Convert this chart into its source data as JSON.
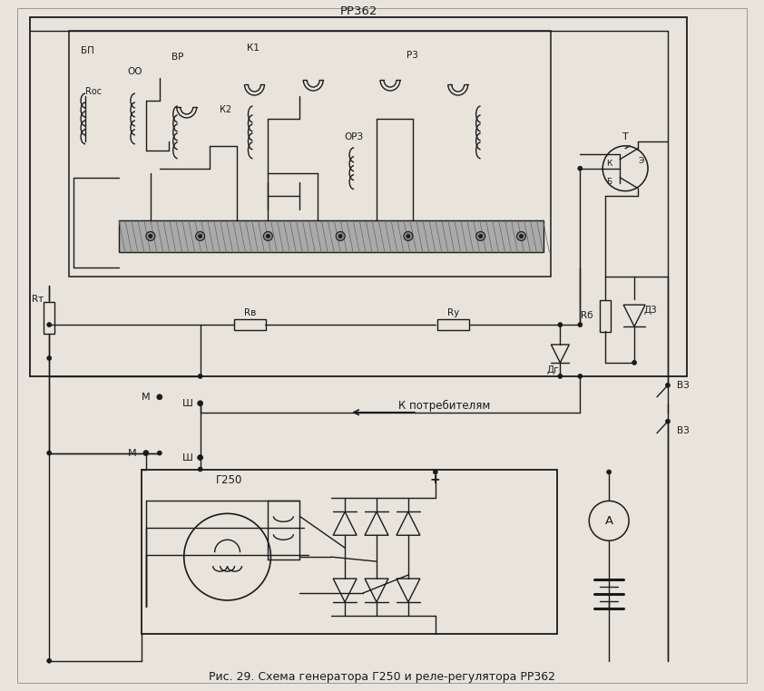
{
  "caption": "Рис. 29. Схема генератора Г250 и реле-регулятора РР362",
  "bg_color": "#e8e4dc",
  "line_color": "#1a1a1a",
  "fig_width": 8.42,
  "fig_height": 7.62,
  "labels": {
    "RR362": "РР362",
    "VP": "ВР",
    "K1": "К1",
    "P3": "Р3",
    "BP": "БП",
    "K2": "К2",
    "Rdc": "Rос",
    "OO": "ОО",
    "ORS": "ОРЗ",
    "RT": "Rт",
    "RV": "Rв",
    "RU": "Rу",
    "RF": "Rб",
    "Dr": "Дг",
    "D3": "Д3",
    "T": "Т",
    "K_tr": "К",
    "E_tr": "Э",
    "B_tr": "Б",
    "VZ1": "ВЗ",
    "VZ2": "ВЗ",
    "M_upper": "М",
    "Sh_upper": "Ш",
    "K_consumers": "К потребителям",
    "M_lower": "М",
    "Sh_lower": "Ш",
    "G250": "Г250",
    "plus": "+",
    "A_label": "А"
  }
}
